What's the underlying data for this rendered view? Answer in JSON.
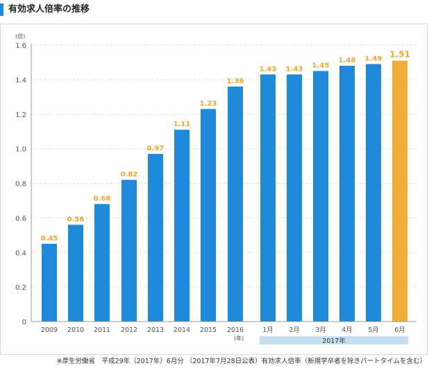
{
  "header": {
    "title": "有効求人倍率の推移"
  },
  "chart_data": {
    "type": "bar",
    "title": "有効求人倍率の推移",
    "y_unit_label": "(倍)",
    "x_unit_label": "(年)",
    "ylim": [
      0,
      1.6
    ],
    "yticks": [
      "0",
      "0.2",
      "0.4",
      "0.6",
      "0.8",
      "1.0",
      "1.2",
      "1.4",
      "1.6"
    ],
    "grid": true,
    "categories": [
      "2009",
      "2010",
      "2011",
      "2012",
      "2013",
      "2014",
      "2015",
      "2016",
      "1月",
      "2月",
      "3月",
      "4月",
      "5月",
      "6月"
    ],
    "values": [
      0.45,
      0.56,
      0.68,
      0.82,
      0.97,
      1.11,
      1.23,
      1.36,
      1.43,
      1.43,
      1.45,
      1.48,
      1.49,
      1.51
    ],
    "value_labels": [
      "0.45",
      "0.56",
      "0.68",
      "0.82",
      "0.97",
      "1.11",
      "1.23",
      "1.36",
      "1.43",
      "1.43",
      "1.45",
      "1.48",
      "1.49",
      "1.51"
    ],
    "highlight_index": 13,
    "group_label": "2017年",
    "group_start_index": 8,
    "group_end_index": 13,
    "colors": {
      "bar": "#1e8ad8",
      "highlight_bar": "#f2ae3b",
      "value_label": "#f0a531",
      "grid": "#dddddd",
      "axis": "#9a9a9a",
      "group_band": "#c7dff2"
    }
  },
  "footer": {
    "source": "※厚生労働省　平成29年（2017年）6月分 （2017年7月28日公表）有効求人倍率（新規学卒者を除きパートタイムを含む）"
  }
}
